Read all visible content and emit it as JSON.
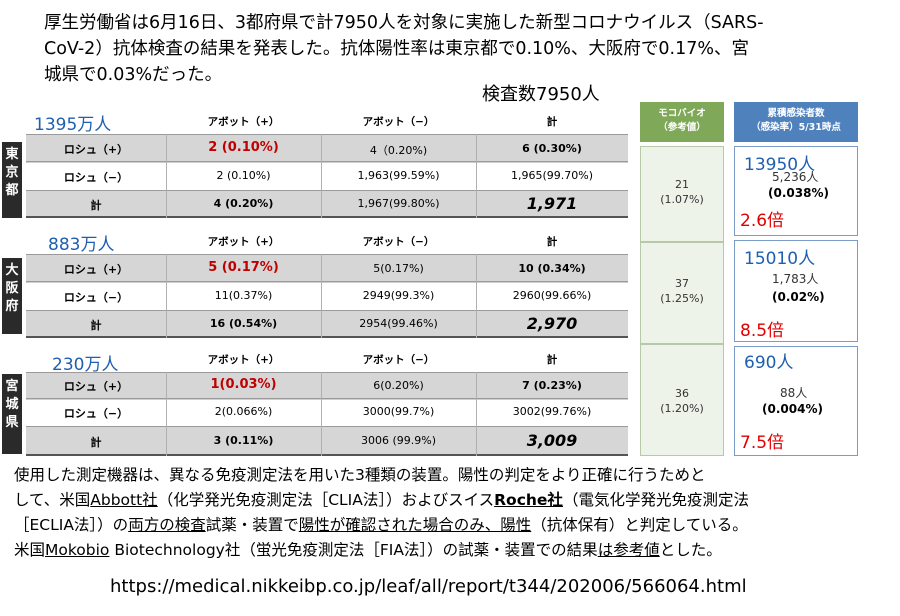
{
  "headline": {
    "lines": [
      "厚生労働省は6月16日、3都府県で計7950人を対象に実施した新型コロナウイルス（SARS-",
      "CoV-2）抗体検査の結果を発表した。抗体陽性率は東京都で0.10%、大阪府で0.17%、宮",
      "城県で0.03%だった。"
    ]
  },
  "total_label": "検査数7950人",
  "table": {
    "col_headers": [
      "アボット（+）",
      "アボット（−）",
      "計"
    ],
    "blocks": [
      {
        "prefecture": "東京都",
        "population": "1395万人",
        "rows": [
          {
            "label": "ロシュ（+）",
            "a_pos": "2 (0.10%)",
            "a_neg": "4（0.20%)",
            "total": "6 (0.30%)"
          },
          {
            "label": "ロシュ（−）",
            "a_pos": "2 (0.10%)",
            "a_neg": "1,963(99.59%)",
            "total": "1,965(99.70%)"
          },
          {
            "label": "計",
            "a_pos": "4 (0.20%)",
            "a_neg": "1,967(99.80%)",
            "total": "1,971"
          }
        ]
      },
      {
        "prefecture": "大阪府",
        "population": "883万人",
        "rows": [
          {
            "label": "ロシュ（+）",
            "a_pos": "5 (0.17%)",
            "a_neg": "5(0.17%)",
            "total": "10 (0.34%)"
          },
          {
            "label": "ロシュ（−）",
            "a_pos": "11(0.37%)",
            "a_neg": "2949(99.3%)",
            "total": "2960(99.66%)"
          },
          {
            "label": "計",
            "a_pos": "16 (0.54%)",
            "a_neg": "2954(99.46%)",
            "total": "2,970"
          }
        ]
      },
      {
        "prefecture": "宮城県",
        "population": "230万人",
        "rows": [
          {
            "label": "ロシュ（+）",
            "a_pos": "1(0.03%)",
            "a_neg": "6(0.20%)",
            "total": "7 (0.23%)"
          },
          {
            "label": "ロシュ（−）",
            "a_pos": "2(0.066%)",
            "a_neg": "3000(99.7%)",
            "total": "3002(99.76%)"
          },
          {
            "label": "計",
            "a_pos": "3 (0.11%)",
            "a_neg": "3006 (99.9%)",
            "total": "3,009"
          }
        ]
      }
    ]
  },
  "mokobio": {
    "header_line1": "モコバイオ",
    "header_line2": "（参考値）",
    "cells": [
      {
        "count": "21",
        "rate": "(1.07%)"
      },
      {
        "count": "37",
        "rate": "(1.25%)"
      },
      {
        "count": "36",
        "rate": "(1.20%)"
      }
    ]
  },
  "cumulative": {
    "header_line1": "累積感染者数",
    "header_line2": "（感染率）5/31時点",
    "cells": [
      {
        "estimate": "13950人",
        "infected": "5,236人",
        "rate": "(0.038%)",
        "ratio": "2.6倍"
      },
      {
        "estimate": "15010人",
        "infected": "1,783人",
        "rate": "(0.02%)",
        "ratio": "8.5倍"
      },
      {
        "estimate": "690人",
        "infected": "88人",
        "rate": "(0.004%)",
        "ratio": "7.5倍"
      }
    ]
  },
  "footnote": {
    "p1": "使用した測定機器は、異なる免疫測定法を用いた3種類の装置。陽性の判定をより正確に行うためと",
    "p2a": "して、米国",
    "abbott": "Abbott社",
    "p2b": "（化学発光免疫測定法［CLIA法］）およびスイス",
    "roche": "Roche社",
    "p2c": "（電気化学発光免疫測定法",
    "p3a": "［ECLIA法］）の",
    "both": "両方の検査",
    "p3b": "試薬・装置で",
    "confirmed": "陽性が確認された場合のみ、陽性",
    "p3c": "（抗体保有）と判定している。",
    "p4a": "米国",
    "mokobio": "Mokobio",
    "p4b": " Biotechnology社（蛍光免疫測定法［FIA法］）の試薬・装置での結果",
    "ref": "は参考値",
    "p4c": "とした。"
  },
  "source_url": "https://medical.nikkeibp.co.jp/leaf/all/report/t344/202006/566064.html"
}
